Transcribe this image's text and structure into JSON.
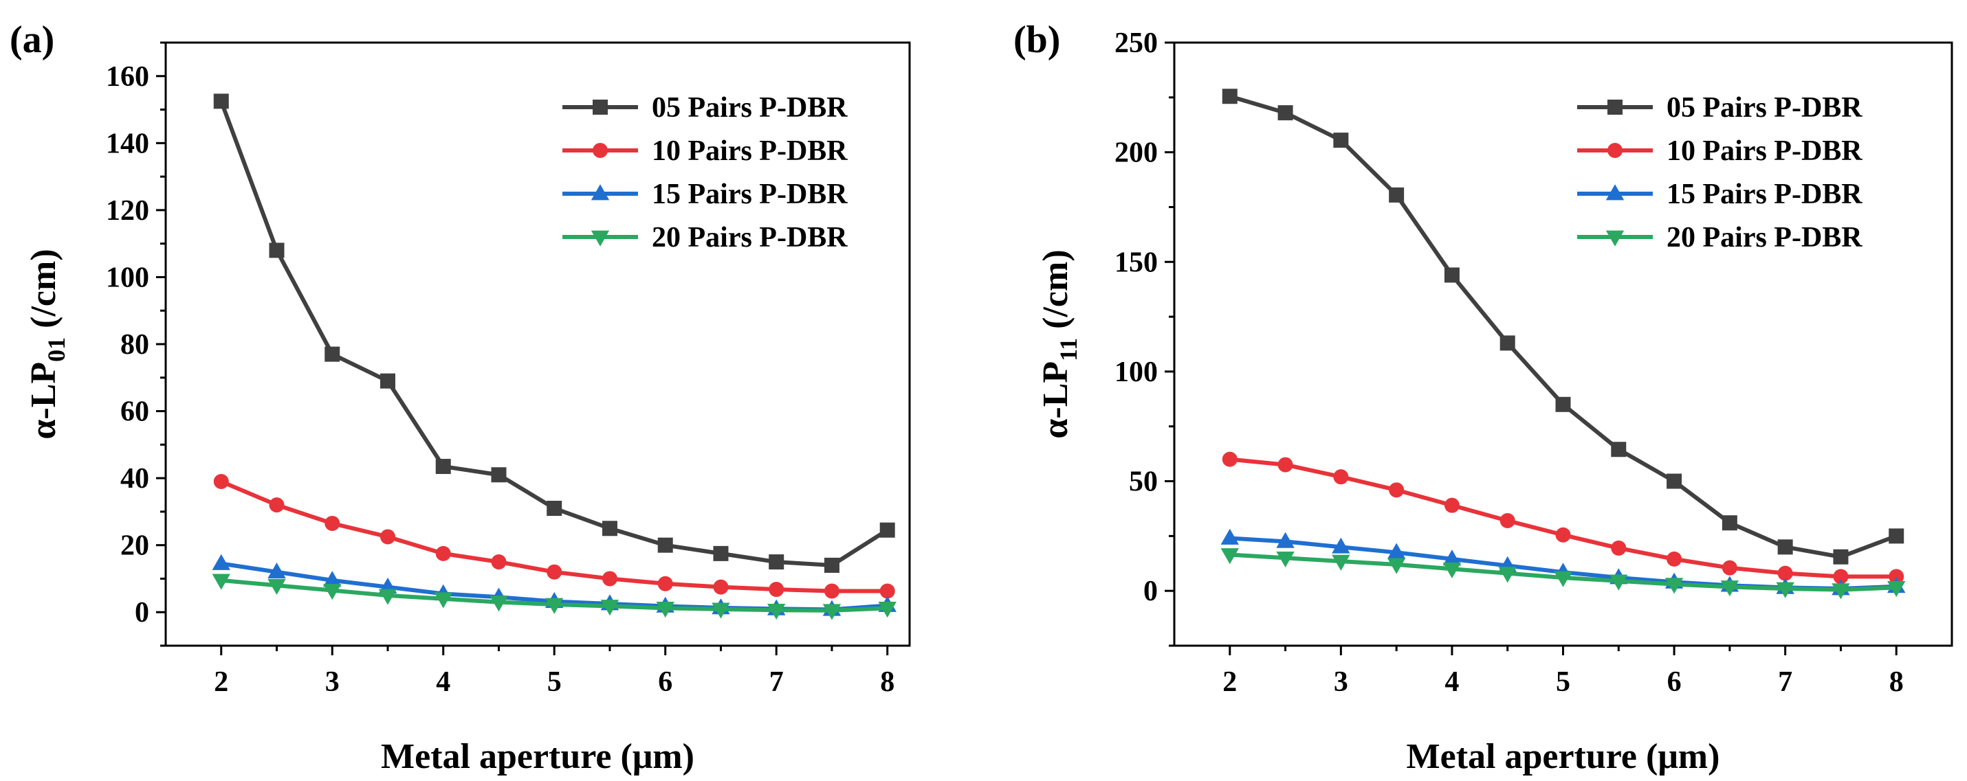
{
  "chart_data": [
    {
      "type": "line",
      "panel_label": "(a)",
      "xlabel": "Metal aperture (μm)",
      "ylabel_main": "α-LP",
      "ylabel_sub": "01",
      "ylabel_unit": " (/cm)",
      "xlim": [
        1.5,
        8.2
      ],
      "ylim": [
        -10,
        170
      ],
      "xticks": [
        2,
        3,
        4,
        5,
        6,
        7,
        8
      ],
      "yticks": [
        0,
        20,
        40,
        60,
        80,
        100,
        120,
        140,
        160
      ],
      "legend_position": "top-right",
      "grid": false,
      "x": [
        2,
        2.5,
        3,
        3.5,
        4,
        4.5,
        5,
        5.5,
        6,
        6.5,
        7,
        7.5,
        8
      ],
      "series": [
        {
          "name": "05 Pairs P-DBR",
          "color": "#404040",
          "marker": "square",
          "values": [
            152.5,
            108,
            77,
            69,
            43.5,
            41,
            31,
            25,
            20,
            17.5,
            15,
            14,
            24.5
          ]
        },
        {
          "name": "10 Pairs P-DBR",
          "color": "#e8333a",
          "marker": "circle",
          "values": [
            39,
            32,
            26.5,
            22.5,
            17.5,
            15,
            12,
            10,
            8.5,
            7.5,
            6.8,
            6.3,
            6.3
          ]
        },
        {
          "name": "15 Pairs P-DBR",
          "color": "#1f6fd1",
          "marker": "triangle-up",
          "values": [
            14.5,
            12,
            9.5,
            7.5,
            5.5,
            4.5,
            3.2,
            2.5,
            1.8,
            1.3,
            1.0,
            0.8,
            2.0
          ]
        },
        {
          "name": "20 Pairs P-DBR",
          "color": "#2aa860",
          "marker": "triangle-down",
          "values": [
            9.5,
            8,
            6.5,
            5,
            4,
            3,
            2.3,
            1.8,
            1.2,
            0.9,
            0.6,
            0.5,
            1.2
          ]
        }
      ]
    },
    {
      "type": "line",
      "panel_label": "(b)",
      "xlabel": "Metal aperture (μm)",
      "ylabel_main": "α-LP",
      "ylabel_sub": "11",
      "ylabel_unit": " (/cm)",
      "xlim": [
        1.5,
        8.5
      ],
      "ylim": [
        -25,
        250
      ],
      "xticks": [
        2,
        3,
        4,
        5,
        6,
        7,
        8
      ],
      "yticks": [
        0,
        50,
        100,
        150,
        200,
        250
      ],
      "legend_position": "top-right",
      "grid": false,
      "x": [
        2,
        2.5,
        3,
        3.5,
        4,
        4.5,
        5,
        5.5,
        6,
        6.5,
        7,
        7.5,
        8
      ],
      "series": [
        {
          "name": "05 Pairs P-DBR",
          "color": "#404040",
          "marker": "square",
          "values": [
            225.5,
            218,
            205.5,
            180.5,
            144,
            113,
            85,
            64.5,
            50,
            31,
            20,
            15.5,
            25
          ]
        },
        {
          "name": "10 Pairs P-DBR",
          "color": "#e8333a",
          "marker": "circle",
          "values": [
            60,
            57.5,
            52,
            46,
            39,
            32,
            25.5,
            19.5,
            14.5,
            10.5,
            8,
            6.5,
            6.5
          ]
        },
        {
          "name": "15 Pairs P-DBR",
          "color": "#1f6fd1",
          "marker": "triangle-up",
          "values": [
            24,
            22.5,
            20,
            17.5,
            14.5,
            11.5,
            8.5,
            6,
            4,
            2.5,
            1.5,
            1.0,
            2
          ]
        },
        {
          "name": "20 Pairs P-DBR",
          "color": "#2aa860",
          "marker": "triangle-down",
          "values": [
            16.5,
            15,
            13.5,
            12,
            10,
            8,
            6,
            4.5,
            3,
            1.8,
            1.0,
            0.5,
            1.5
          ]
        }
      ]
    }
  ]
}
